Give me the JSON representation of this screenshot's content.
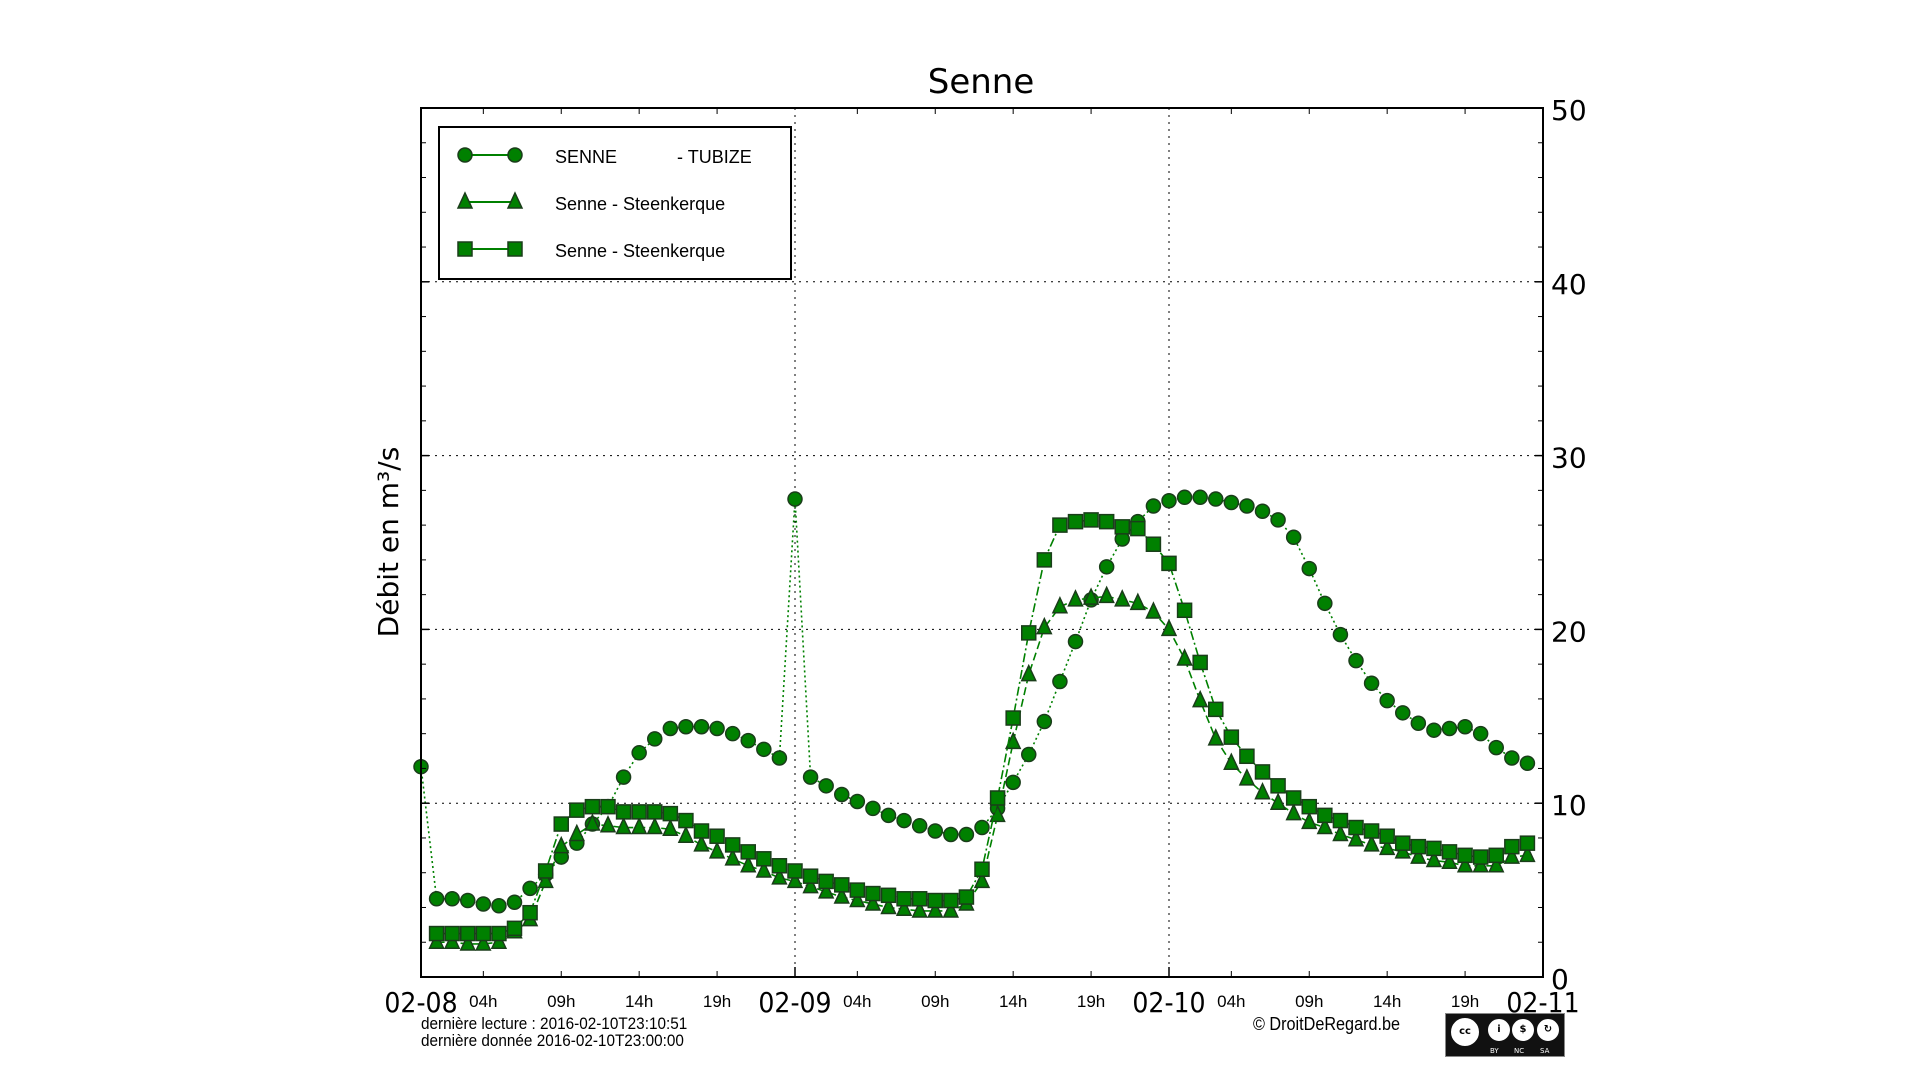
{
  "chart_data": {
    "type": "line",
    "title": "Senne",
    "ylabel": "Débit en m³/s",
    "xlabel": "",
    "ylim": [
      0,
      50
    ],
    "yticks": [
      "0",
      "10",
      "20",
      "30",
      "40",
      "50"
    ],
    "y_axis_side": "right",
    "grid": true,
    "legend_position": "top-left",
    "x_start": "2016-02-08T00:00",
    "x_step": "1h",
    "x_major_ticks": [
      "02-08",
      "02-09",
      "02-10",
      "02-11"
    ],
    "x_minor_ticks": [
      "04h",
      "09h",
      "14h",
      "19h"
    ],
    "series": [
      {
        "name": "SENNE            - TUBIZE",
        "marker": "circle",
        "linestyle": "dotted",
        "color": "#008000",
        "values": [
          12.1,
          4.5,
          4.5,
          4.4,
          4.2,
          4.1,
          4.3,
          5.1,
          5.9,
          6.9,
          7.7,
          8.8,
          9.8,
          11.5,
          12.9,
          13.7,
          14.3,
          14.4,
          14.4,
          14.3,
          14.0,
          13.6,
          13.1,
          12.6,
          27.5,
          11.5,
          11.0,
          10.5,
          10.1,
          9.7,
          9.3,
          9.0,
          8.7,
          8.4,
          8.2,
          8.2,
          8.6,
          9.7,
          11.2,
          12.8,
          14.7,
          17.0,
          19.3,
          21.7,
          23.6,
          25.2,
          26.2,
          27.1,
          27.4,
          27.6,
          27.6,
          27.5,
          27.3,
          27.1,
          26.8,
          26.3,
          25.3,
          23.5,
          21.5,
          19.7,
          18.2,
          16.9,
          15.9,
          15.2,
          14.6,
          14.2,
          14.3,
          14.4,
          14.0,
          13.2,
          12.6,
          12.3
        ]
      },
      {
        "name": "Senne - Steenkerque",
        "marker": "triangle",
        "linestyle": "dashed",
        "color": "#008000",
        "values": [
          null,
          2.0,
          2.0,
          1.9,
          1.9,
          2.0,
          2.6,
          3.3,
          5.5,
          7.5,
          8.2,
          8.8,
          8.7,
          8.6,
          8.6,
          8.6,
          8.5,
          8.1,
          7.6,
          7.2,
          6.8,
          6.4,
          6.1,
          5.7,
          5.5,
          5.2,
          4.9,
          4.6,
          4.4,
          4.2,
          4.0,
          3.9,
          3.8,
          3.8,
          3.8,
          4.2,
          5.5,
          9.3,
          13.5,
          17.4,
          20.1,
          21.3,
          21.7,
          21.8,
          21.9,
          21.7,
          21.5,
          21.0,
          20.0,
          18.3,
          15.9,
          13.7,
          12.3,
          11.4,
          10.6,
          10.0,
          9.4,
          8.9,
          8.6,
          8.2,
          7.9,
          7.6,
          7.4,
          7.2,
          6.9,
          6.7,
          6.6,
          6.4,
          6.4,
          6.4,
          6.9,
          7.0
        ]
      },
      {
        "name": "Senne - Steenkerque",
        "marker": "square",
        "linestyle": "dashdot",
        "color": "#008000",
        "values": [
          null,
          2.5,
          2.5,
          2.5,
          2.5,
          2.5,
          2.8,
          3.7,
          6.1,
          8.8,
          9.6,
          9.8,
          9.8,
          9.5,
          9.5,
          9.5,
          9.4,
          9.0,
          8.4,
          8.1,
          7.6,
          7.2,
          6.8,
          6.4,
          6.1,
          5.8,
          5.5,
          5.3,
          5.0,
          4.8,
          4.7,
          4.5,
          4.5,
          4.4,
          4.4,
          4.6,
          6.2,
          10.3,
          14.9,
          19.8,
          24.0,
          26.0,
          26.2,
          26.3,
          26.2,
          25.9,
          25.8,
          24.9,
          23.8,
          21.1,
          18.1,
          15.4,
          13.8,
          12.7,
          11.8,
          11.0,
          10.3,
          9.8,
          9.3,
          9.0,
          8.6,
          8.4,
          8.1,
          7.7,
          7.5,
          7.4,
          7.2,
          7.0,
          6.9,
          7.0,
          7.5,
          7.7
        ]
      }
    ]
  },
  "footer": {
    "last_read": "dernière lecture : 2016-02-10T23:10:51",
    "last_data": "dernière donnée  2016-02-10T23:00:00",
    "copyright": "© DroitDeRegard.be",
    "license_labels": [
      "BY",
      "NC",
      "SA"
    ]
  }
}
